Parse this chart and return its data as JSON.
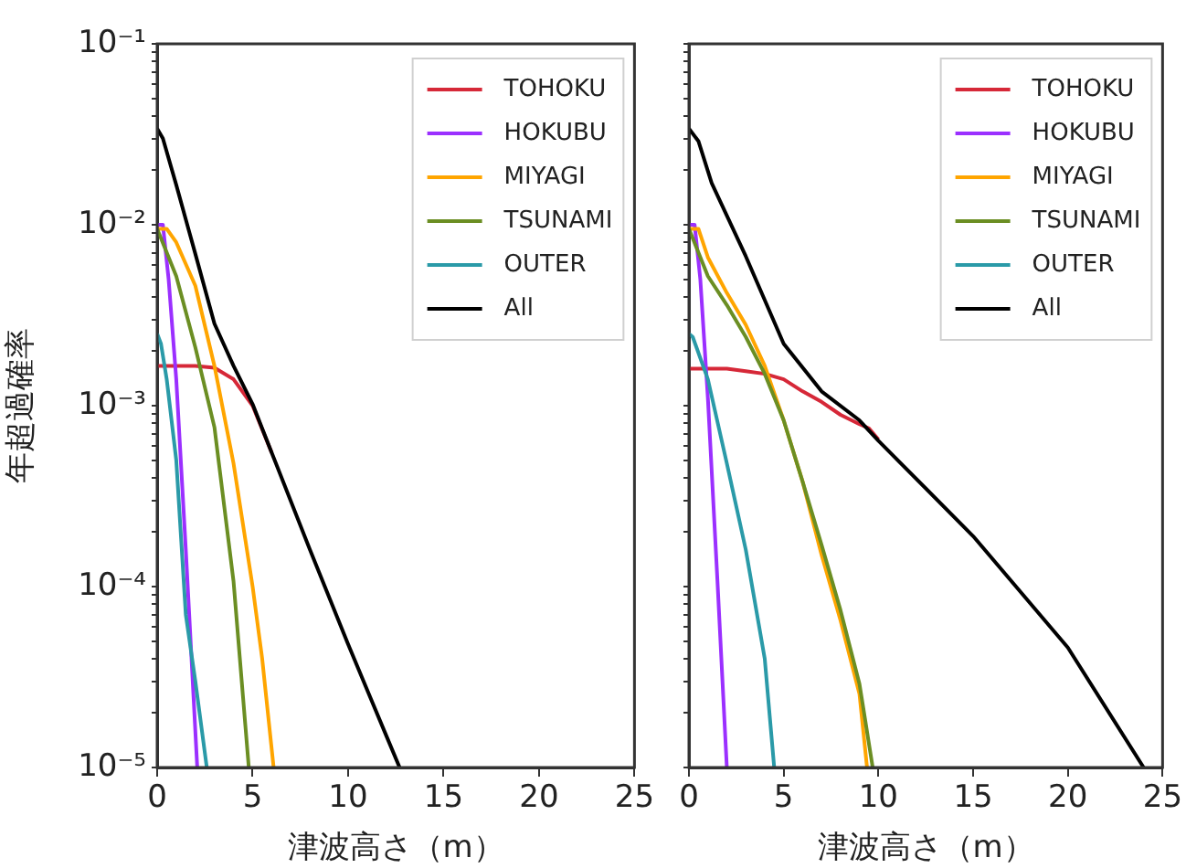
{
  "chart_data": [
    {
      "type": "line",
      "xlabel": "津波高さ（m）",
      "ylabel": "年超過確率",
      "log": "y",
      "legend": "top right",
      "grid": false,
      "marker": "none",
      "line_style": "solid",
      "xlim": [
        0,
        25
      ],
      "xticks": [
        0,
        5,
        10,
        15,
        20,
        25
      ],
      "ylim": [
        1e-05,
        0.1
      ],
      "yticks": [
        {
          "value": 1e-05,
          "label": "10⁻⁵"
        },
        {
          "value": 2e-05,
          "label": null
        },
        {
          "value": 3e-05,
          "label": null
        },
        {
          "value": 4e-05,
          "label": null
        },
        {
          "value": 5e-05,
          "label": null
        },
        {
          "value": 6e-05,
          "label": null
        },
        {
          "value": 7e-05,
          "label": null
        },
        {
          "value": 8e-05,
          "label": null
        },
        {
          "value": 9e-05,
          "label": null
        },
        {
          "value": 0.0001,
          "label": "10⁻⁴"
        },
        {
          "value": 0.0002,
          "label": null
        },
        {
          "value": 0.0003,
          "label": null
        },
        {
          "value": 0.0004,
          "label": null
        },
        {
          "value": 0.0005,
          "label": null
        },
        {
          "value": 0.0006,
          "label": null
        },
        {
          "value": 0.0007,
          "label": null
        },
        {
          "value": 0.0008,
          "label": null
        },
        {
          "value": 0.0009,
          "label": null
        },
        {
          "value": 0.001,
          "label": "10⁻³"
        },
        {
          "value": 0.002,
          "label": null
        },
        {
          "value": 0.003,
          "label": null
        },
        {
          "value": 0.004,
          "label": null
        },
        {
          "value": 0.005,
          "label": null
        },
        {
          "value": 0.006,
          "label": null
        },
        {
          "value": 0.007,
          "label": null
        },
        {
          "value": 0.008,
          "label": null
        },
        {
          "value": 0.009,
          "label": null
        },
        {
          "value": 0.01,
          "label": "10⁻²"
        },
        {
          "value": 0.02,
          "label": null
        },
        {
          "value": 0.03,
          "label": null
        },
        {
          "value": 0.04,
          "label": null
        },
        {
          "value": 0.05,
          "label": null
        },
        {
          "value": 0.06,
          "label": null
        },
        {
          "value": 0.07,
          "label": null
        },
        {
          "value": 0.08,
          "label": null
        },
        {
          "value": 0.09,
          "label": null
        },
        {
          "value": 0.1,
          "label": "10⁻¹"
        }
      ],
      "series": [
        {
          "name": "TOHOKU",
          "color": "#d62838",
          "x": [
            0,
            1,
            2,
            3,
            4,
            5,
            6
          ],
          "values": [
            0.00166,
            0.00166,
            0.00166,
            0.00162,
            0.0014,
            0.001,
            0.00055
          ]
        },
        {
          "name": "HOKUBU",
          "color": "#9b30ff",
          "x": [
            0,
            0.3,
            0.6,
            1,
            1.5,
            2.1
          ],
          "values": [
            0.01,
            0.01,
            0.005,
            0.0014,
            0.00016,
            1e-05
          ]
        },
        {
          "name": "MIYAGI",
          "color": "#ffa500",
          "x": [
            0,
            0.5,
            1,
            2,
            3,
            4,
            5,
            5.5,
            6.1
          ],
          "values": [
            0.0095,
            0.0095,
            0.008,
            0.0046,
            0.00166,
            0.00048,
            0.0001,
            4e-05,
            1e-05
          ]
        },
        {
          "name": "TSUNAMI",
          "color": "#6b8e23",
          "x": [
            0,
            1,
            2,
            3,
            4,
            4.8
          ],
          "values": [
            0.0095,
            0.0052,
            0.0021,
            0.00076,
            0.000107,
            1e-05
          ]
        },
        {
          "name": "OUTER",
          "color": "#2a9aa8",
          "x": [
            0,
            0.2,
            0.5,
            1,
            1.5,
            2,
            2.6
          ],
          "values": [
            0.0025,
            0.0022,
            0.0014,
            0.0005,
            7e-05,
            3e-05,
            1e-05
          ]
        },
        {
          "name": "All",
          "color": "#000000",
          "x": [
            0,
            0.3,
            1,
            2,
            3,
            4,
            5,
            6,
            8,
            10,
            12,
            12.7
          ],
          "values": [
            0.034,
            0.03,
            0.0166,
            0.0069,
            0.00284,
            0.00166,
            0.00102,
            0.00055,
            0.00016,
            4.8e-05,
            1.5e-05,
            1e-05
          ]
        }
      ]
    },
    {
      "type": "line",
      "xlabel": "津波高さ（m）",
      "log": "y",
      "legend": "top right",
      "grid": false,
      "marker": "none",
      "line_style": "solid",
      "tick_labels": "x",
      "xlim": [
        0,
        25
      ],
      "xticks": [
        0,
        5,
        10,
        15,
        20,
        25
      ],
      "ylim": [
        1e-05,
        0.1
      ],
      "yticks": [
        {
          "value": 1e-05,
          "label": null
        },
        {
          "value": 2e-05,
          "label": null
        },
        {
          "value": 3e-05,
          "label": null
        },
        {
          "value": 4e-05,
          "label": null
        },
        {
          "value": 5e-05,
          "label": null
        },
        {
          "value": 6e-05,
          "label": null
        },
        {
          "value": 7e-05,
          "label": null
        },
        {
          "value": 8e-05,
          "label": null
        },
        {
          "value": 9e-05,
          "label": null
        },
        {
          "value": 0.0001,
          "label": null
        },
        {
          "value": 0.0002,
          "label": null
        },
        {
          "value": 0.0003,
          "label": null
        },
        {
          "value": 0.0004,
          "label": null
        },
        {
          "value": 0.0005,
          "label": null
        },
        {
          "value": 0.0006,
          "label": null
        },
        {
          "value": 0.0007,
          "label": null
        },
        {
          "value": 0.0008,
          "label": null
        },
        {
          "value": 0.0009,
          "label": null
        },
        {
          "value": 0.001,
          "label": null
        },
        {
          "value": 0.002,
          "label": null
        },
        {
          "value": 0.003,
          "label": null
        },
        {
          "value": 0.004,
          "label": null
        },
        {
          "value": 0.005,
          "label": null
        },
        {
          "value": 0.006,
          "label": null
        },
        {
          "value": 0.007,
          "label": null
        },
        {
          "value": 0.008,
          "label": null
        },
        {
          "value": 0.009,
          "label": null
        },
        {
          "value": 0.01,
          "label": null
        },
        {
          "value": 0.02,
          "label": null
        },
        {
          "value": 0.03,
          "label": null
        },
        {
          "value": 0.04,
          "label": null
        },
        {
          "value": 0.05,
          "label": null
        },
        {
          "value": 0.06,
          "label": null
        },
        {
          "value": 0.07,
          "label": null
        },
        {
          "value": 0.08,
          "label": null
        },
        {
          "value": 0.09,
          "label": null
        },
        {
          "value": 0.1,
          "label": null
        }
      ],
      "series": [
        {
          "name": "TOHOKU",
          "color": "#d62838",
          "x": [
            0,
            1,
            2,
            3,
            4,
            5,
            6,
            7,
            8,
            9,
            9.5,
            10
          ],
          "values": [
            0.0016,
            0.0016,
            0.0016,
            0.00155,
            0.0015,
            0.0014,
            0.0012,
            0.00105,
            0.00089,
            0.00079,
            0.00075,
            0.00065
          ]
        },
        {
          "name": "HOKUBU",
          "color": "#9b30ff",
          "x": [
            0,
            0.3,
            0.6,
            1,
            1.5,
            2
          ],
          "values": [
            0.01,
            0.01,
            0.005,
            0.0011,
            0.00011,
            1e-05
          ]
        },
        {
          "name": "MIYAGI",
          "color": "#ffa500",
          "x": [
            0,
            0.5,
            1,
            2,
            3,
            4,
            5,
            6,
            7,
            8,
            9,
            9.4
          ],
          "values": [
            0.0095,
            0.0095,
            0.0066,
            0.0042,
            0.0028,
            0.00166,
            0.00083,
            0.00038,
            0.00015,
            6.5e-05,
            2.55e-05,
            1e-05
          ]
        },
        {
          "name": "TSUNAMI",
          "color": "#6b8e23",
          "x": [
            0,
            1,
            2,
            3,
            4,
            5,
            6,
            7,
            8,
            9,
            9.7
          ],
          "values": [
            0.0095,
            0.0052,
            0.0036,
            0.0024,
            0.0015,
            0.00083,
            0.00038,
            0.00017,
            7.4e-05,
            2.9e-05,
            1e-05
          ]
        },
        {
          "name": "OUTER",
          "color": "#2a9aa8",
          "x": [
            0,
            0.2,
            1,
            2,
            3,
            4,
            4.5
          ],
          "values": [
            0.0025,
            0.0024,
            0.0014,
            0.00048,
            0.00016,
            4e-05,
            1e-05
          ]
        },
        {
          "name": "All",
          "color": "#000000",
          "x": [
            0,
            0.5,
            1.2,
            3,
            5,
            7,
            9,
            10,
            15,
            20,
            24
          ],
          "values": [
            0.034,
            0.029,
            0.017,
            0.0067,
            0.0022,
            0.0012,
            0.00083,
            0.00064,
            0.00019,
            4.6e-05,
            1e-05
          ]
        }
      ]
    }
  ]
}
